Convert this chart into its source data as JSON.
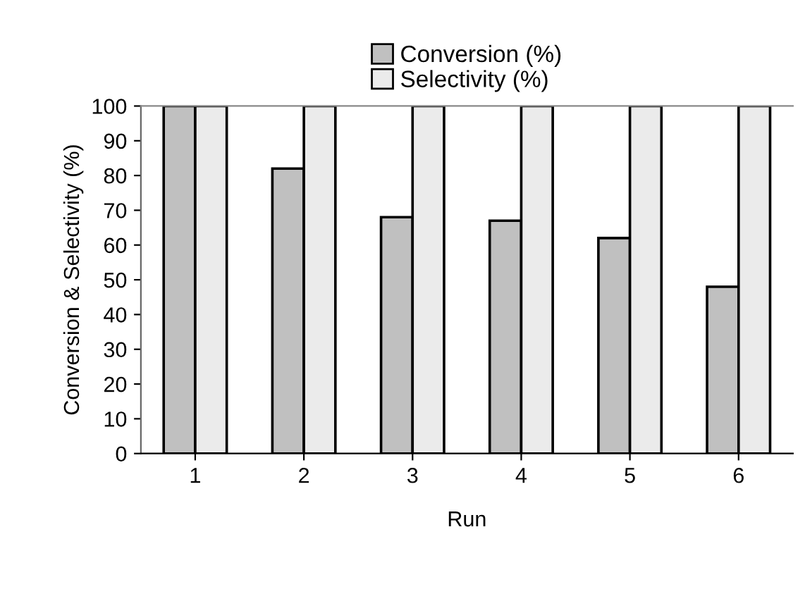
{
  "chart_data": {
    "type": "bar",
    "xlabel": "Run",
    "ylabel": "Conversion & Selectivity (%)",
    "categories": [
      "1",
      "2",
      "3",
      "4",
      "5",
      "6"
    ],
    "series": [
      {
        "name": "Conversion (%)",
        "color": "#c0c0c0",
        "values": [
          100,
          82,
          68,
          67,
          62,
          48
        ]
      },
      {
        "name": "Selectivity (%)",
        "color": "#ebebeb",
        "values": [
          100,
          100,
          100,
          100,
          100,
          100
        ]
      }
    ],
    "ylim": [
      0,
      100
    ],
    "yticks": [
      0,
      10,
      20,
      30,
      40,
      50,
      60,
      70,
      80,
      90,
      100
    ],
    "grid": false,
    "legend": "top"
  }
}
